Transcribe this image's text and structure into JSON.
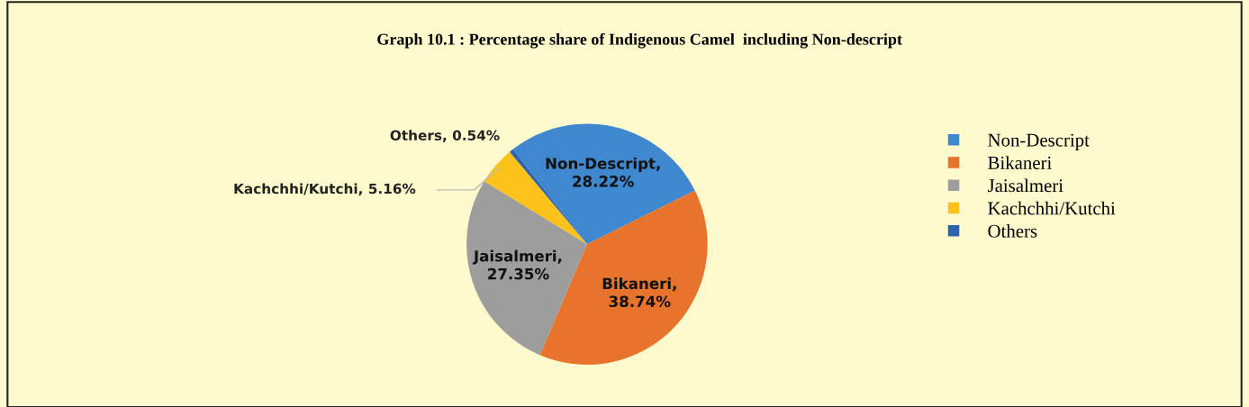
{
  "chart_data": {
    "type": "pie",
    "title": "Graph 10.1 : Percentage share of Indigenous Camel  including Non-descript",
    "categories": [
      "Non-Descript",
      "Bikaneri",
      "Jaisalmeri",
      "Kachchhi/Kutchi",
      "Others"
    ],
    "values": [
      28.22,
      38.74,
      27.35,
      5.16,
      0.54
    ],
    "colors": [
      "#3f88cf",
      "#e8732c",
      "#9d9d9d",
      "#fcc21c",
      "#2f63b0"
    ],
    "value_labels": [
      "Non-Descript,\n28.22%",
      "Bikaneri,\n38.74%",
      "Jaisalmeri,\n27.35%",
      "Kachchhi/Kutchi, 5.16%",
      "Others, 0.54%"
    ],
    "legend": "right"
  }
}
